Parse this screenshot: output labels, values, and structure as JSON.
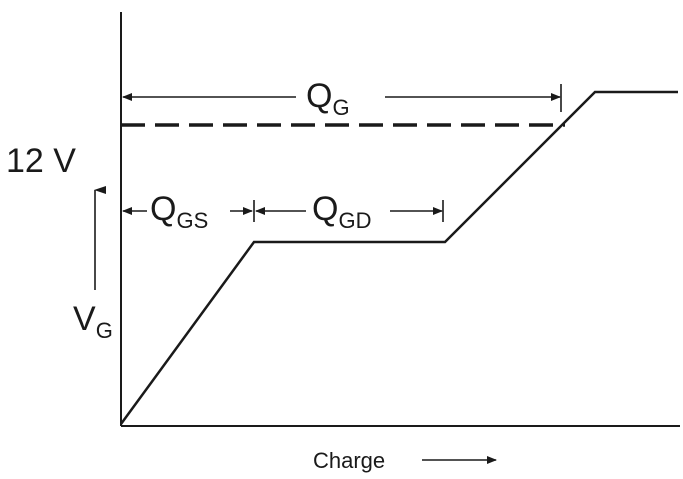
{
  "diagram": {
    "voltage_label": "12 V",
    "axis_y": {
      "main": "V",
      "sub": "G"
    },
    "axis_x": "Charge",
    "qg": {
      "main": "Q",
      "sub": "G"
    },
    "qgs": {
      "main": "Q",
      "sub": "GS"
    },
    "qgd": {
      "main": "Q",
      "sub": "GD"
    },
    "colors": {
      "ink": "#1a1a1a",
      "background": "#ffffff"
    }
  }
}
